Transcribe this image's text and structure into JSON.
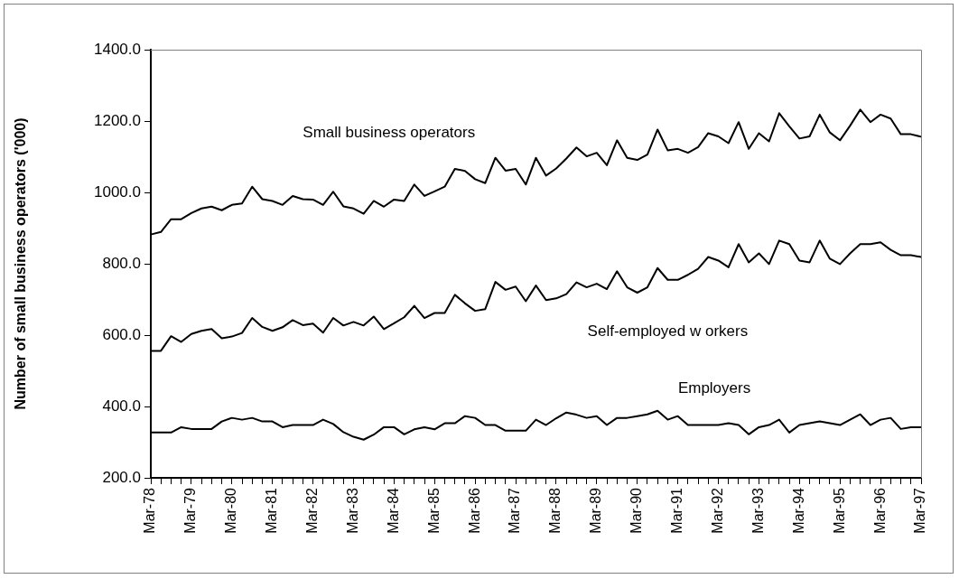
{
  "chart_data": {
    "type": "line",
    "ylabel": "Number of small business operators ('000)",
    "categories": [
      "Mar-78",
      null,
      null,
      null,
      "Mar-79",
      null,
      null,
      null,
      "Mar-80",
      null,
      null,
      null,
      "Mar-81",
      null,
      null,
      null,
      "Mar-82",
      null,
      null,
      null,
      "Mar-83",
      null,
      null,
      null,
      "Mar-84",
      null,
      null,
      null,
      "Mar-85",
      null,
      null,
      null,
      "Mar-86",
      null,
      null,
      null,
      "Mar-87",
      null,
      null,
      null,
      "Mar-88",
      null,
      null,
      null,
      "Mar-89",
      null,
      null,
      null,
      "Mar-90",
      null,
      null,
      null,
      "Mar-91",
      null,
      null,
      null,
      "Mar-92",
      null,
      null,
      null,
      "Mar-93",
      null,
      null,
      null,
      "Mar-94",
      null,
      null,
      null,
      "Mar-95",
      null,
      null,
      null,
      "Mar-96",
      null,
      null,
      null,
      "Mar-97"
    ],
    "ylim": [
      200,
      1400
    ],
    "yticks": [
      {
        "value": 200,
        "label": "200.0"
      },
      {
        "value": 400,
        "label": "400.0"
      },
      {
        "value": 600,
        "label": "600.0"
      },
      {
        "value": 800,
        "label": "800.0"
      },
      {
        "value": 1000,
        "label": "1000.0"
      },
      {
        "value": 1200,
        "label": "1200.0"
      },
      {
        "value": 1400,
        "label": "1400.0"
      }
    ],
    "grid": false,
    "legend": false,
    "marker": "none",
    "line_style": "solid",
    "series": [
      {
        "name": "Small business operators",
        "color": "#000000",
        "values": [
          882,
          889,
          925,
          925,
          942,
          955,
          960,
          950,
          965,
          969,
          1016,
          981,
          976,
          965,
          990,
          981,
          980,
          965,
          1002,
          961,
          955,
          940,
          976,
          960,
          980,
          976,
          1022,
          990,
          1003,
          1016,
          1066,
          1060,
          1037,
          1026,
          1097,
          1061,
          1066,
          1022,
          1097,
          1047,
          1067,
          1095,
          1126,
          1101,
          1111,
          1076,
          1146,
          1097,
          1091,
          1106,
          1176,
          1118,
          1122,
          1111,
          1127,
          1166,
          1157,
          1138,
          1197,
          1122,
          1166,
          1143,
          1222,
          1185,
          1151,
          1157,
          1218,
          1168,
          1146,
          1187,
          1232,
          1197,
          1218,
          1207,
          1163,
          1163,
          1156
        ]
      },
      {
        "name": "Self-employed w orkers",
        "color": "#000000",
        "values": [
          556,
          556,
          597,
          581,
          603,
          612,
          617,
          591,
          596,
          606,
          648,
          623,
          612,
          622,
          642,
          628,
          632,
          607,
          648,
          627,
          637,
          627,
          652,
          617,
          633,
          650,
          682,
          648,
          662,
          662,
          713,
          689,
          668,
          673,
          749,
          727,
          736,
          695,
          739,
          698,
          703,
          715,
          748,
          734,
          744,
          729,
          779,
          734,
          719,
          734,
          788,
          755,
          755,
          769,
          786,
          819,
          809,
          790,
          855,
          804,
          829,
          799,
          865,
          855,
          809,
          804,
          865,
          814,
          799,
          829,
          855,
          855,
          860,
          839,
          824,
          824,
          819
        ]
      },
      {
        "name": "Employers",
        "color": "#000000",
        "values": [
          327,
          327,
          327,
          342,
          337,
          337,
          337,
          358,
          368,
          363,
          368,
          358,
          358,
          342,
          348,
          348,
          348,
          363,
          351,
          328,
          315,
          307,
          321,
          342,
          342,
          322,
          336,
          342,
          336,
          353,
          353,
          373,
          368,
          348,
          348,
          332,
          332,
          332,
          363,
          348,
          367,
          383,
          377,
          368,
          373,
          348,
          368,
          368,
          373,
          378,
          388,
          363,
          373,
          348,
          348,
          348,
          348,
          353,
          348,
          322,
          342,
          348,
          363,
          327,
          348,
          353,
          358,
          353,
          348,
          363,
          378,
          348,
          363,
          368,
          337,
          342,
          342
        ]
      }
    ]
  }
}
